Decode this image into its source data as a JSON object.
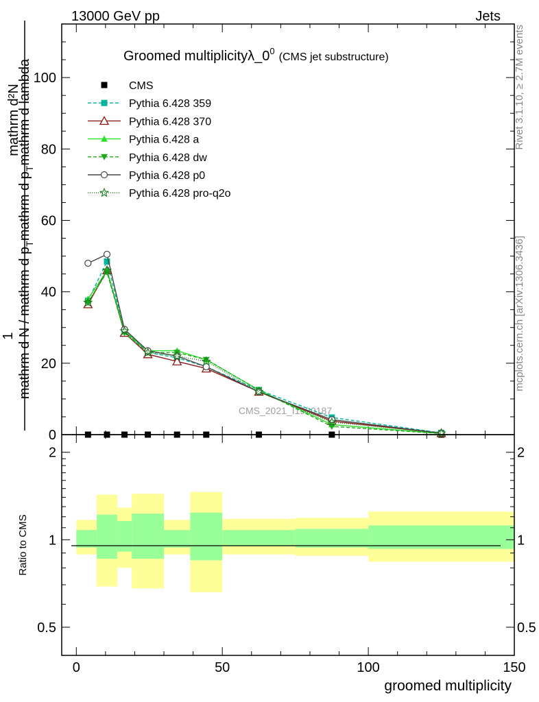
{
  "header": {
    "left": "13000 GeV pp",
    "right": "Jets",
    "side_top": "Rivet 3.1.10, ≥ 2.7M events",
    "side_bottom": "mcplots.cern.ch [arXiv:1306.3436]"
  },
  "chart_data": [
    {
      "type": "line",
      "title": "Groomed multiplicityλ_0",
      "title_sup": "0",
      "subtitle": "(CMS jet substructure)",
      "ylabel_num": "mathrm d²N",
      "ylabel_den": "mathrm d N / mathrm d p",
      "ylabel_den2": "mathrm d p",
      "ylabel_den3": "mathrm d lambda",
      "ylabel_one": "1",
      "ylabel_sub": "T",
      "watermark": "CMS_2021_I1920187",
      "xlim": [
        -5,
        150
      ],
      "ylim": [
        0,
        115
      ],
      "yticks": [
        0,
        20,
        40,
        60,
        80,
        100
      ],
      "x": [
        4,
        10.5,
        16.5,
        24.5,
        34.5,
        44.5,
        62.5,
        87.5,
        125
      ],
      "series": [
        {
          "name": "CMS",
          "color": "#000000",
          "marker": "square",
          "dash": "none",
          "values": [
            0,
            0,
            0,
            0,
            0,
            0,
            0,
            0,
            0
          ]
        },
        {
          "name": "Pythia 6.428 359",
          "color": "#00b39a",
          "marker": "square",
          "dash": "5,3",
          "values": [
            37.5,
            48.5,
            29,
            23,
            21.5,
            19,
            12.5,
            4.8,
            0.5
          ]
        },
        {
          "name": "Pythia 6.428 370",
          "color": "#8b1a1a",
          "marker": "triangle-open",
          "dash": "none",
          "values": [
            36.5,
            46,
            28.5,
            22.5,
            20.5,
            18.5,
            12,
            3.8,
            0.4
          ]
        },
        {
          "name": "Pythia 6.428 a",
          "color": "#2ee02e",
          "marker": "triangle",
          "dash": "none",
          "values": [
            38,
            46,
            29,
            23.5,
            23.5,
            21,
            12.5,
            2.8,
            0.3
          ]
        },
        {
          "name": "Pythia 6.428 dw",
          "color": "#1faa1f",
          "marker": "triangle-down",
          "dash": "5,3",
          "values": [
            37,
            45.5,
            28.5,
            23,
            23,
            21,
            12.5,
            2.3,
            0.3
          ]
        },
        {
          "name": "Pythia 6.428 p0",
          "color": "#444444",
          "marker": "circle-open",
          "dash": "none",
          "values": [
            48,
            50.5,
            29.5,
            23.5,
            22,
            19,
            12,
            4.2,
            0.4
          ]
        },
        {
          "name": "Pythia 6.428 pro-q2o",
          "color": "#1a7a1a",
          "marker": "star",
          "dash": "1,2",
          "values": [
            37,
            46,
            29,
            23,
            22,
            20.5,
            12,
            3.5,
            0.4
          ]
        }
      ]
    },
    {
      "type": "area",
      "ylabel": "Ratio to CMS",
      "xlabel": "groomed multiplicity",
      "xlim": [
        -5,
        150
      ],
      "ylim": [
        0.4,
        2.3
      ],
      "log_y": true,
      "yticks": [
        "0.5",
        "1",
        "2"
      ],
      "xticks": [
        "0",
        "50",
        "100",
        "150"
      ],
      "bins": [
        {
          "lo": 0,
          "hi": 7,
          "y_lo": 0.89,
          "y_hi": 1.17,
          "g_lo": 0.94,
          "g_hi": 1.08
        },
        {
          "lo": 7,
          "hi": 14,
          "y_lo": 0.69,
          "y_hi": 1.43,
          "g_lo": 0.86,
          "g_hi": 1.22
        },
        {
          "lo": 14,
          "hi": 19,
          "y_lo": 0.8,
          "y_hi": 1.29,
          "g_lo": 0.91,
          "g_hi": 1.16
        },
        {
          "lo": 19,
          "hi": 30,
          "y_lo": 0.68,
          "y_hi": 1.44,
          "g_lo": 0.86,
          "g_hi": 1.23
        },
        {
          "lo": 30,
          "hi": 39,
          "y_lo": 0.89,
          "y_hi": 1.17,
          "g_lo": 0.94,
          "g_hi": 1.08
        },
        {
          "lo": 39,
          "hi": 50,
          "y_lo": 0.66,
          "y_hi": 1.46,
          "g_lo": 0.85,
          "g_hi": 1.24
        },
        {
          "lo": 50,
          "hi": 75,
          "y_lo": 0.89,
          "y_hi": 1.18,
          "g_lo": 0.95,
          "g_hi": 1.08
        },
        {
          "lo": 75,
          "hi": 100,
          "y_lo": 0.88,
          "y_hi": 1.19,
          "g_lo": 0.94,
          "g_hi": 1.09
        },
        {
          "lo": 100,
          "hi": 150,
          "y_lo": 0.84,
          "y_hi": 1.25,
          "g_lo": 0.93,
          "g_hi": 1.12
        }
      ]
    }
  ]
}
